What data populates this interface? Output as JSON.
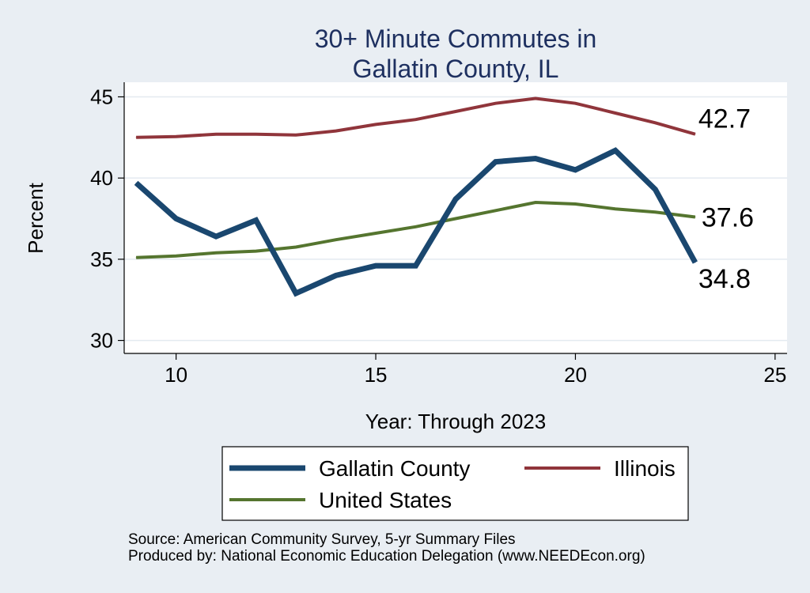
{
  "chart_data": {
    "type": "line",
    "title": [
      "30+ Minute Commutes in",
      "Gallatin County, IL"
    ],
    "xlabel": "Year: Through 2023",
    "ylabel": "Percent",
    "xlim": [
      8.7,
      25.3
    ],
    "ylim": [
      29.2,
      45.9
    ],
    "x_ticks": [
      10,
      15,
      20,
      25
    ],
    "y_ticks": [
      30,
      35,
      40,
      45
    ],
    "grid": true,
    "series": [
      {
        "name": "Gallatin County",
        "color": "#1a476f",
        "x": [
          9,
          10,
          11,
          12,
          13,
          14,
          15,
          16,
          17,
          18,
          19,
          20,
          21,
          22,
          23
        ],
        "values": [
          39.7,
          37.5,
          36.4,
          37.4,
          32.9,
          34.0,
          34.6,
          34.6,
          38.7,
          41.0,
          41.2,
          40.5,
          41.7,
          39.3,
          34.8
        ],
        "end_label": "34.8"
      },
      {
        "name": "Illinois",
        "color": "#90353b",
        "x": [
          9,
          10,
          11,
          12,
          13,
          14,
          15,
          16,
          17,
          18,
          19,
          20,
          21,
          22,
          23
        ],
        "values": [
          42.5,
          42.55,
          42.7,
          42.7,
          42.65,
          42.9,
          43.3,
          43.6,
          44.1,
          44.6,
          44.9,
          44.6,
          44.0,
          43.4,
          42.7
        ],
        "end_label": "42.7"
      },
      {
        "name": "United States",
        "color": "#55752f",
        "x": [
          9,
          10,
          11,
          12,
          13,
          14,
          15,
          16,
          17,
          18,
          19,
          20,
          21,
          22,
          23
        ],
        "values": [
          35.1,
          35.2,
          35.4,
          35.5,
          35.75,
          36.2,
          36.6,
          37.0,
          37.5,
          38.0,
          38.5,
          38.4,
          38.1,
          37.9,
          37.6
        ],
        "end_label": "37.6"
      }
    ],
    "legend": {
      "placement": "bottom",
      "order": [
        "Gallatin County",
        "Illinois",
        "United States"
      ]
    },
    "notes": [
      "Source: American Community Survey, 5-yr Summary Files",
      "Produced by: National Economic Education Delegation (www.NEEDEcon.org)"
    ]
  }
}
